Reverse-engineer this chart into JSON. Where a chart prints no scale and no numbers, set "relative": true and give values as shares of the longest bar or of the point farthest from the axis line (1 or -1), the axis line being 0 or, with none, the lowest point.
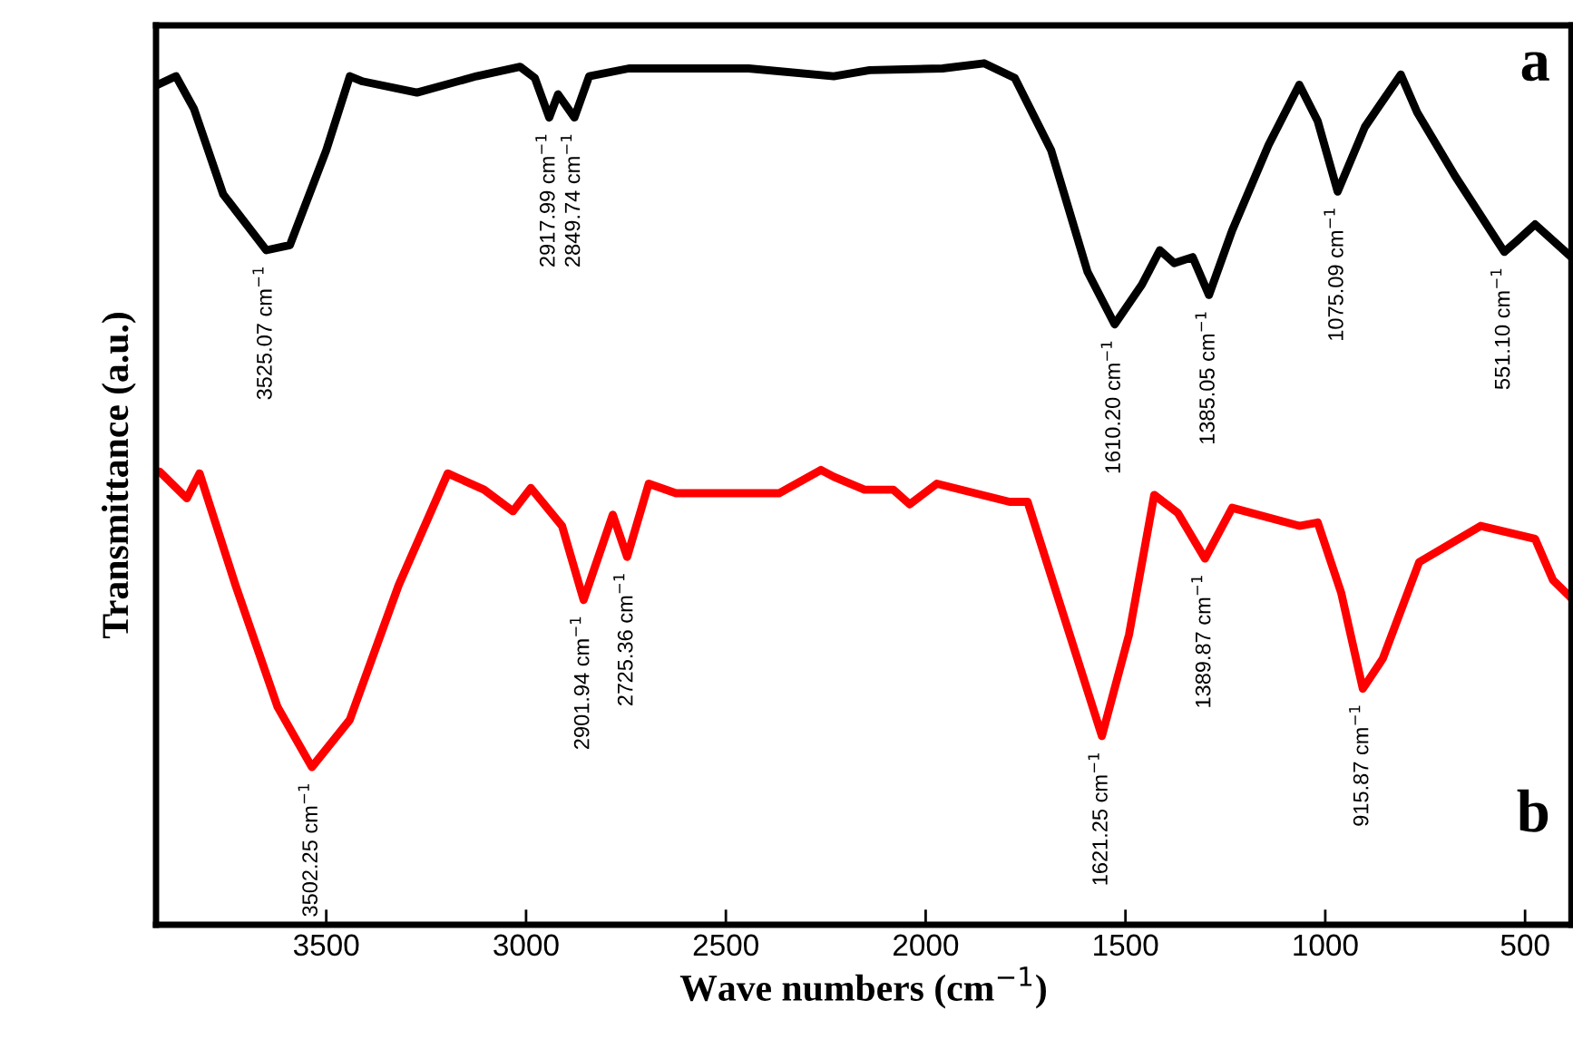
{
  "chart_data": {
    "type": "line",
    "relative": true,
    "xlabel": "Wave numbers (cm$^{−1}$)",
    "ylabel": "Transmittance (a.u.)",
    "xlim": [
      3926,
      384
    ],
    "xticks": [
      3500,
      3000,
      2500,
      2000,
      1500,
      1000,
      500
    ],
    "tick_labels": "x",
    "grid": false,
    "marker": "none",
    "line_style": "solid",
    "series": [
      {
        "color": "#000000",
        "x": [
          3922,
          3876,
          3831,
          3758,
          3650,
          3591,
          3500,
          3441,
          3409,
          3273,
          3124,
          3015,
          2978,
          2942,
          2920,
          2879,
          2842,
          2743,
          2443,
          2230,
          2140,
          1958,
          1854,
          1777,
          1686,
          1595,
          1527,
          1459,
          1414,
          1378,
          1332,
          1291,
          1233,
          1142,
          1065,
          1019,
          969,
          901,
          811,
          770,
          675,
          552,
          520,
          475,
          384
        ],
        "values": [
          0.975,
          0.985,
          0.947,
          0.848,
          0.783,
          0.789,
          0.899,
          0.985,
          0.979,
          0.966,
          0.985,
          0.996,
          0.983,
          0.937,
          0.964,
          0.937,
          0.985,
          0.994,
          0.994,
          0.985,
          0.992,
          0.994,
          1.0,
          0.983,
          0.899,
          0.758,
          0.697,
          0.743,
          0.783,
          0.768,
          0.775,
          0.731,
          0.806,
          0.905,
          0.975,
          0.933,
          0.851,
          0.926,
          0.987,
          0.943,
          0.869,
          0.781,
          0.794,
          0.813,
          0.775
        ]
      },
      {
        "color": "#ff0000",
        "x": [
          3917,
          3849,
          3817,
          3727,
          3622,
          3536,
          3441,
          3319,
          3196,
          3105,
          3033,
          2988,
          2910,
          2856,
          2783,
          2747,
          2693,
          2625,
          2366,
          2262,
          2230,
          2153,
          2081,
          2040,
          1972,
          1790,
          1745,
          1654,
          1559,
          1491,
          1428,
          1369,
          1301,
          1233,
          1065,
          1019,
          960,
          906,
          856,
          765,
          611,
          475,
          430,
          384
        ],
        "values": [
          0.526,
          0.495,
          0.524,
          0.394,
          0.253,
          0.183,
          0.238,
          0.394,
          0.524,
          0.505,
          0.48,
          0.507,
          0.463,
          0.377,
          0.476,
          0.427,
          0.512,
          0.501,
          0.501,
          0.528,
          0.52,
          0.505,
          0.505,
          0.488,
          0.512,
          0.491,
          0.491,
          0.358,
          0.219,
          0.337,
          0.499,
          0.478,
          0.425,
          0.484,
          0.463,
          0.467,
          0.385,
          0.274,
          0.309,
          0.421,
          0.463,
          0.448,
          0.4,
          0.379
        ]
      }
    ],
    "annotations": [
      {
        "text": "3525.07 cm$^{−1}$",
        "x": 3650,
        "y": 0.783
      },
      {
        "text": "2917.99 cm$^{−1}$",
        "x": 2942,
        "y": 0.937
      },
      {
        "text": "2849.74 cm$^{−1}$",
        "x": 2879,
        "y": 0.937
      },
      {
        "text": "1610.20 cm$^{−1}$",
        "x": 1527,
        "y": 0.697
      },
      {
        "text": "1385.05 cm$^{−1}$",
        "x": 1291,
        "y": 0.731
      },
      {
        "text": "1075.09 cm$^{−1}$",
        "x": 969,
        "y": 0.851
      },
      {
        "text": "551.10 cm$^{−1}$",
        "x": 552,
        "y": 0.781
      },
      {
        "text": "3502.25 cm$^{−1}$",
        "x": 3536,
        "y": 0.183
      },
      {
        "text": "2901.94 cm$^{−1}$",
        "x": 2856,
        "y": 0.377
      },
      {
        "text": "2725.36 cm$^{−1}$",
        "x": 2747,
        "y": 0.427
      },
      {
        "text": "1621.25 cm$^{−1}$",
        "x": 1559,
        "y": 0.219
      },
      {
        "text": "1389.87 cm$^{−1}$",
        "x": 1301,
        "y": 0.425
      },
      {
        "text": "915.87 cm$^{−1}$",
        "x": 906,
        "y": 0.274
      },
      "a",
      "b"
    ]
  }
}
